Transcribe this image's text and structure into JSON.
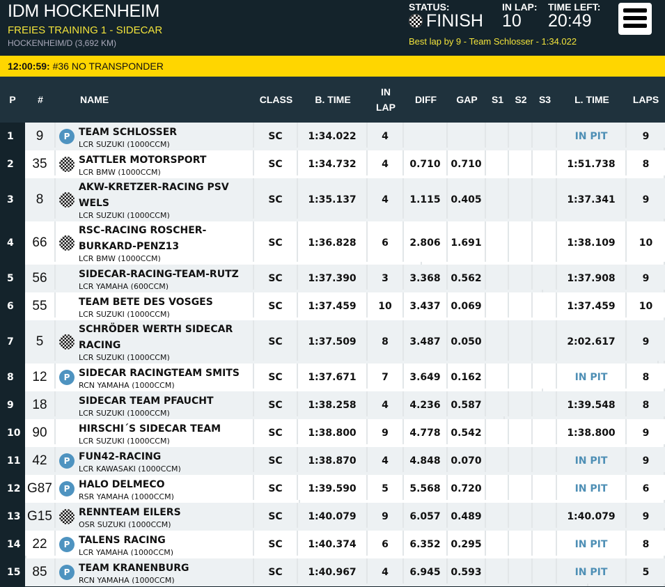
{
  "header": {
    "title": "IDM HOCKENHEIM",
    "session": "FREIES TRAINING 1 - SIDECAR",
    "track": "HOCKENHEIM/D (3,692 KM)",
    "status_label": "STATUS:",
    "status": "FINISH",
    "in_lap_label": "IN LAP:",
    "in_lap": "10",
    "time_left_label": "TIME LEFT:",
    "time_left": "20:49",
    "best_lap": "Best lap by 9 - Team Schlosser - 1:34.022",
    "menu_icon": "hamburger-icon",
    "status_icon": "checkered-flag-icon"
  },
  "alert": {
    "time": "12:00:59:",
    "message": "#36 NO TRANSPONDER",
    "color": "#ffd600"
  },
  "columns": [
    "P",
    "#",
    "NAME",
    "CLASS",
    "B. TIME",
    "IN LAP",
    "DIFF",
    "GAP",
    "S1",
    "S2",
    "S3",
    "L. TIME",
    "LAPS"
  ],
  "colors": {
    "progress": "#9acd93",
    "pit": "#4e8fb5",
    "pit_badge": "#4e93c0"
  },
  "rows": [
    {
      "p": "1",
      "num": "9",
      "icon": "pit",
      "name": "TEAM SCHLOSSER",
      "vehicle": "LCR SUZUKI (1000CCM)",
      "class": "SC",
      "btime": "1:34.022",
      "inlap": "4",
      "diff": "",
      "gap": "",
      "ltime": "IN PIT",
      "laps": "9",
      "progress": 100
    },
    {
      "p": "2",
      "num": "35",
      "icon": "flag",
      "name": "SATTLER MOTORSPORT",
      "vehicle": "LCR BMW (1000CCM)",
      "class": "SC",
      "btime": "1:34.732",
      "inlap": "4",
      "diff": "0.710",
      "gap": "0.710",
      "ltime": "1:51.738",
      "laps": "8",
      "progress": 100
    },
    {
      "p": "3",
      "num": "8",
      "icon": "flag",
      "name": "AKW-KRETZER-RACING PSV WELS",
      "vehicle": "LCR SUZUKI (1000CCM)",
      "class": "SC",
      "btime": "1:35.137",
      "inlap": "4",
      "diff": "1.115",
      "gap": "0.405",
      "ltime": "1:37.341",
      "laps": "9",
      "progress": 100
    },
    {
      "p": "4",
      "num": "66",
      "icon": "flag",
      "name": "RSC-RACING ROSCHER-BURKARD-PENZ13",
      "vehicle": "LCR BMW (1000CCM)",
      "class": "SC",
      "btime": "1:36.828",
      "inlap": "6",
      "diff": "2.806",
      "gap": "1.691",
      "ltime": "1:38.109",
      "laps": "10",
      "progress": 62
    },
    {
      "p": "5",
      "num": "56",
      "icon": "",
      "name": "SIDECAR-RACING-TEAM-RUTZ",
      "vehicle": "LCR YAMAHA (600CCM)",
      "class": "SC",
      "btime": "1:37.390",
      "inlap": "3",
      "diff": "3.368",
      "gap": "0.562",
      "ltime": "1:37.908",
      "laps": "9",
      "progress": 81
    },
    {
      "p": "6",
      "num": "55",
      "icon": "",
      "name": "TEAM BETE DES VOSGES",
      "vehicle": "LCR SUZUKI (1000CCM)",
      "class": "SC",
      "btime": "1:37.459",
      "inlap": "10",
      "diff": "3.437",
      "gap": "0.069",
      "ltime": "1:37.459",
      "laps": "10",
      "progress": 100
    },
    {
      "p": "7",
      "num": "5",
      "icon": "flag",
      "name": "SCHRÖDER WERTH SIDECAR RACING",
      "vehicle": "LCR SUZUKI (1000CCM)",
      "class": "SC",
      "btime": "1:37.509",
      "inlap": "8",
      "diff": "3.487",
      "gap": "0.050",
      "ltime": "2:02.617",
      "laps": "9",
      "progress": 99
    },
    {
      "p": "8",
      "num": "12",
      "icon": "pit",
      "name": "SIDECAR RACINGTEAM SMITS",
      "vehicle": "RCN YAMAHA (1000CCM)",
      "class": "SC",
      "btime": "1:37.671",
      "inlap": "7",
      "diff": "3.649",
      "gap": "0.162",
      "ltime": "IN PIT",
      "laps": "8",
      "progress": 81
    },
    {
      "p": "9",
      "num": "18",
      "icon": "",
      "name": "SIDECAR TEAM PFAUCHT",
      "vehicle": "LCR SUZUKI (1000CCM)",
      "class": "SC",
      "btime": "1:38.258",
      "inlap": "4",
      "diff": "4.236",
      "gap": "0.587",
      "ltime": "1:39.548",
      "laps": "8",
      "progress": 75
    },
    {
      "p": "10",
      "num": "90",
      "icon": "",
      "name": "HIRSCHI´S SIDECAR TEAM",
      "vehicle": "LCR SUZUKI (1000CCM)",
      "class": "SC",
      "btime": "1:38.800",
      "inlap": "9",
      "diff": "4.778",
      "gap": "0.542",
      "ltime": "1:38.800",
      "laps": "9",
      "progress": 100
    },
    {
      "p": "11",
      "num": "42",
      "icon": "pit",
      "name": "FUN42-RACING",
      "vehicle": "LCR KAWASAKI (1000CCM)",
      "class": "SC",
      "btime": "1:38.870",
      "inlap": "4",
      "diff": "4.848",
      "gap": "0.070",
      "ltime": "IN PIT",
      "laps": "9",
      "progress": 100
    },
    {
      "p": "12",
      "num": "G87",
      "icon": "pit",
      "name": "HALO DELMECO",
      "vehicle": "RSR YAMAHA (1000CCM)",
      "class": "SC",
      "btime": "1:39.590",
      "inlap": "5",
      "diff": "5.568",
      "gap": "0.720",
      "ltime": "IN PIT",
      "laps": "6",
      "progress": 43
    },
    {
      "p": "13",
      "num": "G15",
      "icon": "flag",
      "name": "RENNTEAM EILERS",
      "vehicle": "OSR SUZUKI (1000CCM)",
      "class": "SC",
      "btime": "1:40.079",
      "inlap": "9",
      "diff": "6.057",
      "gap": "0.489",
      "ltime": "1:40.079",
      "laps": "9",
      "progress": 100
    },
    {
      "p": "14",
      "num": "22",
      "icon": "pit",
      "name": "TALENS RACING",
      "vehicle": "LCR YAMAHA (1000CCM)",
      "class": "SC",
      "btime": "1:40.374",
      "inlap": "6",
      "diff": "6.352",
      "gap": "0.295",
      "ltime": "IN PIT",
      "laps": "8",
      "progress": 0
    },
    {
      "p": "15",
      "num": "85",
      "icon": "pit",
      "name": "TEAM KRANENBURG",
      "vehicle": "RCN YAMAHA (1000CCM)",
      "class": "SC",
      "btime": "1:40.967",
      "inlap": "4",
      "diff": "6.945",
      "gap": "0.593",
      "ltime": "IN PIT",
      "laps": "5",
      "progress": 88
    }
  ]
}
